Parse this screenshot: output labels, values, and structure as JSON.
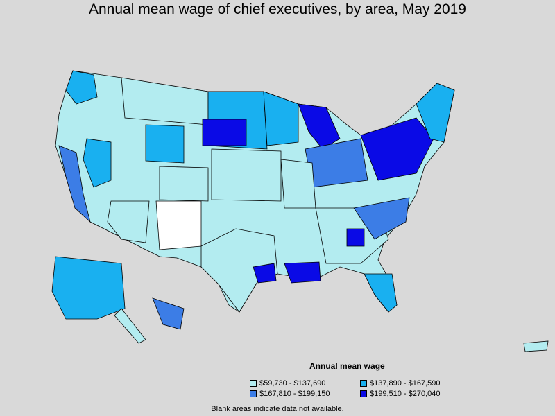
{
  "title": "Annual mean wage of chief executives, by area, May 2019",
  "legend": {
    "title": "Annual mean wage",
    "items": [
      {
        "label": "$59,730 - $137,690",
        "color": "#b3ecf0"
      },
      {
        "label": "$137,890 - $167,590",
        "color": "#19b0f0"
      },
      {
        "label": "$167,810 - $199,150",
        "color": "#3c7de6"
      },
      {
        "label": "$199,510 - $270,040",
        "color": "#0a0ae6"
      }
    ]
  },
  "note": "Blank areas indicate data not available.",
  "colors": {
    "background": "#d9d9d9",
    "blank": "#ffffff",
    "border": "#000000"
  }
}
